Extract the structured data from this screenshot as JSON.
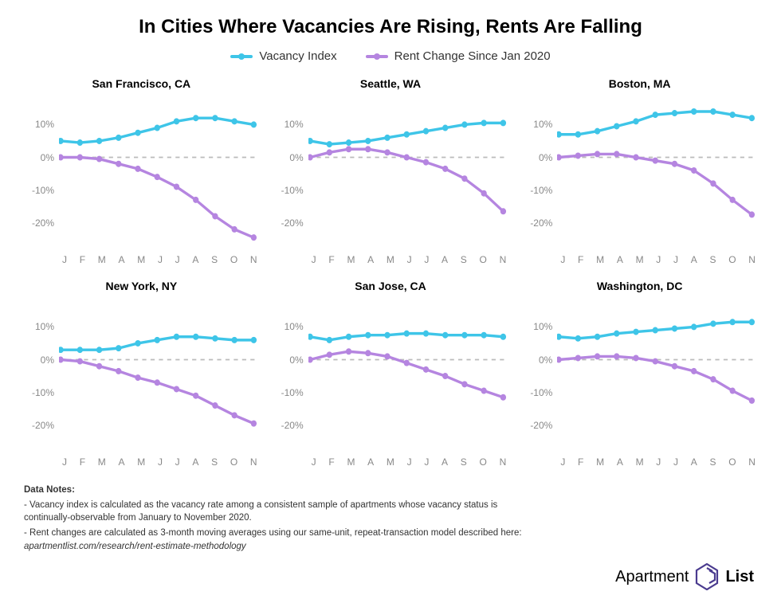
{
  "title": "In Cities Where Vacancies Are Rising, Rents Are Falling",
  "legend": [
    {
      "label": "Vacancy Index",
      "color": "#3ec5e8"
    },
    {
      "label": "Rent Change Since Jan 2020",
      "color": "#b585e0"
    }
  ],
  "chart": {
    "x_labels": [
      "J",
      "F",
      "M",
      "A",
      "M",
      "J",
      "J",
      "A",
      "S",
      "O",
      "N"
    ],
    "y_ticks": [
      10,
      0,
      -10,
      -20
    ],
    "y_tick_labels": [
      "10%",
      "0%",
      "-10%",
      "-20%"
    ],
    "y_domain": [
      -27,
      18
    ],
    "zero_line_color": "#bbbbbb",
    "grid_dash": "5,5",
    "line_width": 3,
    "marker_radius": 3.5,
    "series_colors": {
      "vacancy": "#3ec5e8",
      "rent": "#b585e0"
    },
    "title_fontsize": 14,
    "axis_label_color": "#888888",
    "axis_fontsize": 12,
    "background_color": "#ffffff"
  },
  "panels": [
    {
      "title": "San Francisco, CA",
      "vacancy": [
        5,
        4.5,
        5,
        6,
        7.5,
        9,
        11,
        12,
        12,
        11,
        10
      ],
      "rent": [
        0,
        0,
        -0.5,
        -2,
        -3.5,
        -6,
        -9,
        -13,
        -18,
        -22,
        -24.5
      ]
    },
    {
      "title": "Seattle, WA",
      "vacancy": [
        5,
        4,
        4.5,
        5,
        6,
        7,
        8,
        9,
        10,
        10.5,
        10.5
      ],
      "rent": [
        0,
        1.5,
        2.5,
        2.5,
        1.5,
        0,
        -1.5,
        -3.5,
        -6.5,
        -11,
        -16.5
      ]
    },
    {
      "title": "Boston, MA",
      "vacancy": [
        7,
        7,
        8,
        9.5,
        11,
        13,
        13.5,
        14,
        14,
        13,
        12
      ],
      "rent": [
        0,
        0.5,
        1,
        1,
        0,
        -1,
        -2,
        -4,
        -8,
        -13,
        -17.5
      ]
    },
    {
      "title": "New York, NY",
      "vacancy": [
        3,
        3,
        3,
        3.5,
        5,
        6,
        7,
        7,
        6.5,
        6,
        6
      ],
      "rent": [
        0,
        -0.5,
        -2,
        -3.5,
        -5.5,
        -7,
        -9,
        -11,
        -14,
        -17,
        -19.5
      ]
    },
    {
      "title": "San Jose, CA",
      "vacancy": [
        7,
        6,
        7,
        7.5,
        7.5,
        8,
        8,
        7.5,
        7.5,
        7.5,
        7
      ],
      "rent": [
        0,
        1.5,
        2.5,
        2,
        1,
        -1,
        -3,
        -5,
        -7.5,
        -9.5,
        -11.5
      ]
    },
    {
      "title": "Washington, DC",
      "vacancy": [
        7,
        6.5,
        7,
        8,
        8.5,
        9,
        9.5,
        10,
        11,
        11.5,
        11.5
      ],
      "rent": [
        0,
        0.5,
        1,
        1,
        0.5,
        -0.5,
        -2,
        -3.5,
        -6,
        -9.5,
        -12.5
      ]
    }
  ],
  "notes": {
    "title": "Data Notes:",
    "lines": [
      "- Vacancy index is calculated as the vacancy rate among a consistent sample of apartments whose vacancy status is continually-observable from January to November 2020.",
      "- Rent changes are calculated as 3-month moving averages using our same-unit, repeat-transaction model described here:"
    ],
    "source_ref": "apartmentlist.com/research/rent-estimate-methodology"
  },
  "brand": {
    "word1": "Apartment",
    "word2": "List",
    "logo_color": "#4a3b8f"
  }
}
